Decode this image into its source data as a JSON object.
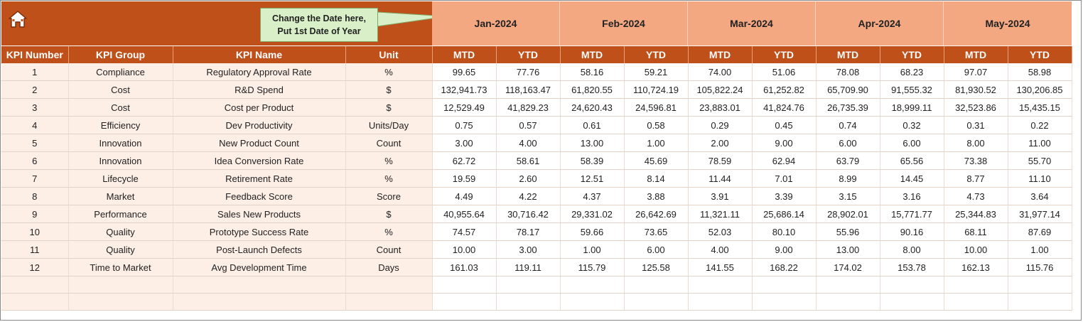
{
  "callout": {
    "line1": "Change the Date here,",
    "line2": "Put 1st Date of Year"
  },
  "months": [
    "Jan-2024",
    "Feb-2024",
    "Mar-2024",
    "Apr-2024",
    "May-2024"
  ],
  "columns": {
    "kpi_number": "KPI Number",
    "kpi_group": "KPI Group",
    "kpi_name": "KPI Name",
    "unit": "Unit",
    "mtd": "MTD",
    "ytd": "YTD"
  },
  "rows": [
    {
      "num": "1",
      "group": "Compliance",
      "name": "Regulatory Approval Rate",
      "unit": "%",
      "values": [
        "99.65",
        "77.76",
        "58.16",
        "59.21",
        "74.00",
        "51.06",
        "78.08",
        "68.23",
        "97.07",
        "58.98"
      ]
    },
    {
      "num": "2",
      "group": "Cost",
      "name": "R&D Spend",
      "unit": "$",
      "values": [
        "132,941.73",
        "118,163.47",
        "61,820.55",
        "110,724.19",
        "105,822.24",
        "61,252.82",
        "65,709.90",
        "91,555.32",
        "81,930.52",
        "130,206.85"
      ]
    },
    {
      "num": "3",
      "group": "Cost",
      "name": "Cost per Product",
      "unit": "$",
      "values": [
        "12,529.49",
        "41,829.23",
        "24,620.43",
        "24,596.81",
        "23,883.01",
        "41,824.76",
        "26,735.39",
        "18,999.11",
        "32,523.86",
        "15,435.15"
      ]
    },
    {
      "num": "4",
      "group": "Efficiency",
      "name": "Dev Productivity",
      "unit": "Units/Day",
      "values": [
        "0.75",
        "0.57",
        "0.61",
        "0.58",
        "0.29",
        "0.45",
        "0.74",
        "0.32",
        "0.31",
        "0.22"
      ]
    },
    {
      "num": "5",
      "group": "Innovation",
      "name": "New Product Count",
      "unit": "Count",
      "values": [
        "3.00",
        "4.00",
        "13.00",
        "1.00",
        "2.00",
        "9.00",
        "6.00",
        "6.00",
        "8.00",
        "11.00"
      ]
    },
    {
      "num": "6",
      "group": "Innovation",
      "name": "Idea Conversion Rate",
      "unit": "%",
      "values": [
        "62.72",
        "58.61",
        "58.39",
        "45.69",
        "78.59",
        "62.94",
        "63.79",
        "65.56",
        "73.38",
        "55.70"
      ]
    },
    {
      "num": "7",
      "group": "Lifecycle",
      "name": "Retirement Rate",
      "unit": "%",
      "values": [
        "19.59",
        "2.60",
        "12.51",
        "8.14",
        "11.44",
        "7.01",
        "8.99",
        "14.45",
        "8.77",
        "11.10"
      ]
    },
    {
      "num": "8",
      "group": "Market",
      "name": "Feedback Score",
      "unit": "Score",
      "values": [
        "4.49",
        "4.22",
        "4.37",
        "3.88",
        "3.91",
        "3.39",
        "3.15",
        "3.16",
        "4.73",
        "3.64"
      ]
    },
    {
      "num": "9",
      "group": "Performance",
      "name": "Sales New Products",
      "unit": "$",
      "values": [
        "40,955.64",
        "30,716.42",
        "29,331.02",
        "26,642.69",
        "11,321.11",
        "25,686.14",
        "28,902.01",
        "15,771.77",
        "25,344.83",
        "31,977.14"
      ]
    },
    {
      "num": "10",
      "group": "Quality",
      "name": "Prototype Success Rate",
      "unit": "%",
      "values": [
        "74.57",
        "78.17",
        "59.66",
        "73.65",
        "52.03",
        "80.10",
        "55.96",
        "90.16",
        "68.11",
        "87.69"
      ]
    },
    {
      "num": "11",
      "group": "Quality",
      "name": "Post-Launch Defects",
      "unit": "Count",
      "values": [
        "10.00",
        "3.00",
        "1.00",
        "6.00",
        "4.00",
        "9.00",
        "13.00",
        "8.00",
        "10.00",
        "1.00"
      ]
    },
    {
      "num": "12",
      "group": "Time to Market",
      "name": "Avg Development Time",
      "unit": "Days",
      "values": [
        "161.03",
        "119.11",
        "115.79",
        "125.58",
        "141.55",
        "168.22",
        "174.02",
        "153.78",
        "162.13",
        "115.76"
      ]
    }
  ]
}
